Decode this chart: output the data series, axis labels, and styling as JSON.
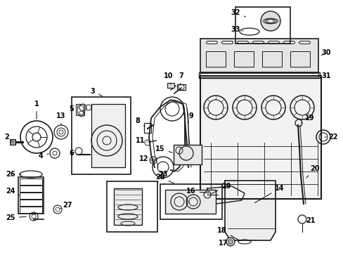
{
  "bg_color": "#ffffff",
  "fig_width": 4.89,
  "fig_height": 3.6,
  "dpi": 100,
  "line_color": "#1a1a1a"
}
